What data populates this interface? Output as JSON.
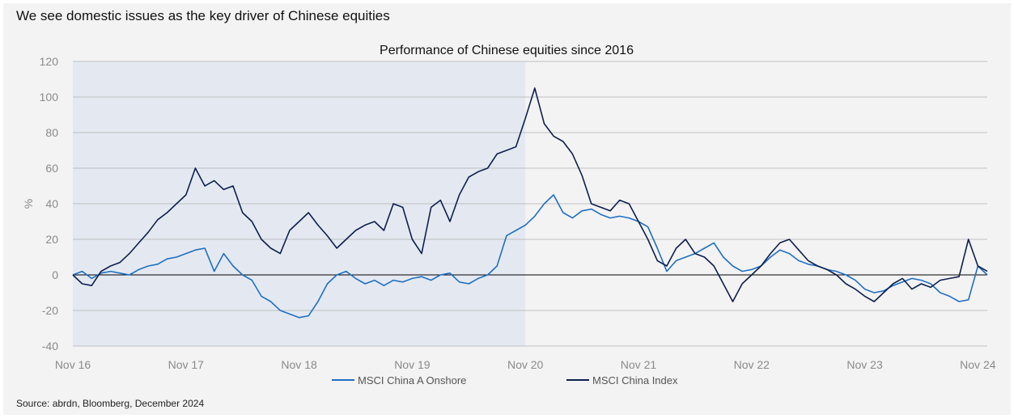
{
  "headline": "We see domestic issues as the key driver of Chinese equities",
  "source": "Source: abrdn, Bloomberg, December 2024",
  "colors": {
    "shading": "#e4e9f1",
    "grid": "#b0b0b0",
    "zero_line": "#000000",
    "onshore": "#1f6fc3",
    "index": "#0d1f4f"
  },
  "chart_data": {
    "type": "line",
    "title": "Performance of Chinese equities since 2016",
    "ylabel": "%",
    "xlabel": "",
    "ylim": [
      -40,
      120
    ],
    "yticks": [
      -40,
      -20,
      0,
      20,
      40,
      60,
      80,
      100,
      120
    ],
    "xlim": [
      0,
      97
    ],
    "xtick_positions": [
      0,
      12,
      24,
      36,
      48,
      60,
      72,
      84,
      96
    ],
    "xtick_labels": [
      "Nov 16",
      "Nov 17",
      "Nov 18",
      "Nov 19",
      "Nov 20",
      "Nov 21",
      "Nov 22",
      "Nov 23",
      "Nov 24"
    ],
    "shaded_range": [
      0,
      48
    ],
    "grid": "horizontal",
    "legend_position": "bottom",
    "series": [
      {
        "name": "MSCI China A Onshore",
        "color": "#1f6fc3",
        "x": [
          0,
          1,
          2,
          3,
          4,
          5,
          6,
          7,
          8,
          9,
          10,
          11,
          12,
          13,
          14,
          15,
          16,
          17,
          18,
          19,
          20,
          21,
          22,
          23,
          24,
          25,
          26,
          27,
          28,
          29,
          30,
          31,
          32,
          33,
          34,
          35,
          36,
          37,
          38,
          39,
          40,
          41,
          42,
          43,
          44,
          45,
          46,
          47,
          48,
          49,
          50,
          51,
          52,
          53,
          54,
          55,
          56,
          57,
          58,
          59,
          60,
          61,
          62,
          63,
          64,
          65,
          66,
          67,
          68,
          69,
          70,
          71,
          72,
          73,
          74,
          75,
          76,
          77,
          78,
          79,
          80,
          81,
          82,
          83,
          84,
          85,
          86,
          87,
          88,
          89,
          90,
          91,
          92,
          93,
          94,
          95,
          96,
          97
        ],
        "values": [
          0,
          2,
          -2,
          1,
          2,
          1,
          0,
          3,
          5,
          6,
          9,
          10,
          12,
          14,
          15,
          2,
          12,
          5,
          0,
          -3,
          -12,
          -15,
          -20,
          -22,
          -24,
          -23,
          -15,
          -5,
          0,
          2,
          -2,
          -5,
          -3,
          -6,
          -3,
          -4,
          -2,
          -1,
          -3,
          0,
          1,
          -4,
          -5,
          -2,
          0,
          5,
          22,
          25,
          28,
          33,
          40,
          45,
          35,
          32,
          36,
          37,
          34,
          32,
          33,
          32,
          30,
          27,
          15,
          2,
          8,
          10,
          12,
          15,
          18,
          10,
          5,
          2,
          3,
          5,
          10,
          14,
          12,
          8,
          6,
          5,
          3,
          2,
          0,
          -3,
          -8,
          -10,
          -9,
          -6,
          -4,
          -2,
          -3,
          -5,
          -10,
          -12,
          -15,
          -14,
          5,
          0
        ],
        "style": "solid"
      },
      {
        "name": "MSCI China Index",
        "color": "#0d1f4f",
        "x": [
          0,
          1,
          2,
          3,
          4,
          5,
          6,
          7,
          8,
          9,
          10,
          11,
          12,
          13,
          14,
          15,
          16,
          17,
          18,
          19,
          20,
          21,
          22,
          23,
          24,
          25,
          26,
          27,
          28,
          29,
          30,
          31,
          32,
          33,
          34,
          35,
          36,
          37,
          38,
          39,
          40,
          41,
          42,
          43,
          44,
          45,
          46,
          47,
          48,
          49,
          50,
          51,
          52,
          53,
          54,
          55,
          56,
          57,
          58,
          59,
          60,
          61,
          62,
          63,
          64,
          65,
          66,
          67,
          68,
          69,
          70,
          71,
          72,
          73,
          74,
          75,
          76,
          77,
          78,
          79,
          80,
          81,
          82,
          83,
          84,
          85,
          86,
          87,
          88,
          89,
          90,
          91,
          92,
          93,
          94,
          95,
          96,
          97
        ],
        "values": [
          0,
          -5,
          -6,
          2,
          5,
          7,
          12,
          18,
          24,
          31,
          35,
          40,
          45,
          60,
          50,
          53,
          48,
          50,
          35,
          30,
          20,
          15,
          12,
          25,
          30,
          35,
          28,
          22,
          15,
          20,
          25,
          28,
          30,
          25,
          40,
          38,
          20,
          12,
          38,
          42,
          30,
          45,
          55,
          58,
          60,
          68,
          70,
          72,
          88,
          105,
          85,
          78,
          75,
          68,
          56,
          40,
          38,
          36,
          42,
          40,
          30,
          20,
          8,
          5,
          15,
          20,
          12,
          10,
          5,
          -5,
          -15,
          -5,
          0,
          5,
          12,
          18,
          20,
          14,
          8,
          5,
          3,
          0,
          -5,
          -8,
          -12,
          -15,
          -10,
          -5,
          -2,
          -8,
          -5,
          -7,
          -3,
          -2,
          -1,
          20,
          5,
          2
        ]
      }
    ]
  }
}
